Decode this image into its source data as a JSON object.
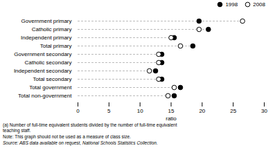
{
  "chart_data": {
    "type": "dot",
    "orientation": "horizontal",
    "categories": [
      "Government primary",
      "Catholic primary",
      "Independent primary",
      "Total primary",
      "Government secondary",
      "Catholic secondary",
      "Independent secondary",
      "Total secondary",
      "Total government",
      "Total non-government"
    ],
    "series": [
      {
        "name": "1998",
        "color": "#000000",
        "marker": "filled",
        "values": [
          19.5,
          21.0,
          15.5,
          18.5,
          13.5,
          13.5,
          12.5,
          13.5,
          16.5,
          15.5
        ]
      },
      {
        "name": "2008",
        "color": "#000000",
        "marker": "open",
        "values": [
          26.5,
          19.5,
          15.0,
          16.5,
          13.0,
          13.0,
          11.5,
          13.0,
          15.5,
          14.5
        ]
      }
    ],
    "xlabel": "ratio",
    "xlim": [
      0,
      30
    ],
    "xticks": [
      0,
      5,
      10,
      15,
      20,
      25,
      30
    ],
    "legend": "upper right",
    "line_style": "dashed",
    "annotations": [
      "(a) Number of full-time equivalent students divided by the number of full-time equivalent\nteaching staff.",
      "Note: This graph should not be used as a measure of class size.",
      "Source: ABS data available on request, National Schools Statistics Collection."
    ]
  }
}
